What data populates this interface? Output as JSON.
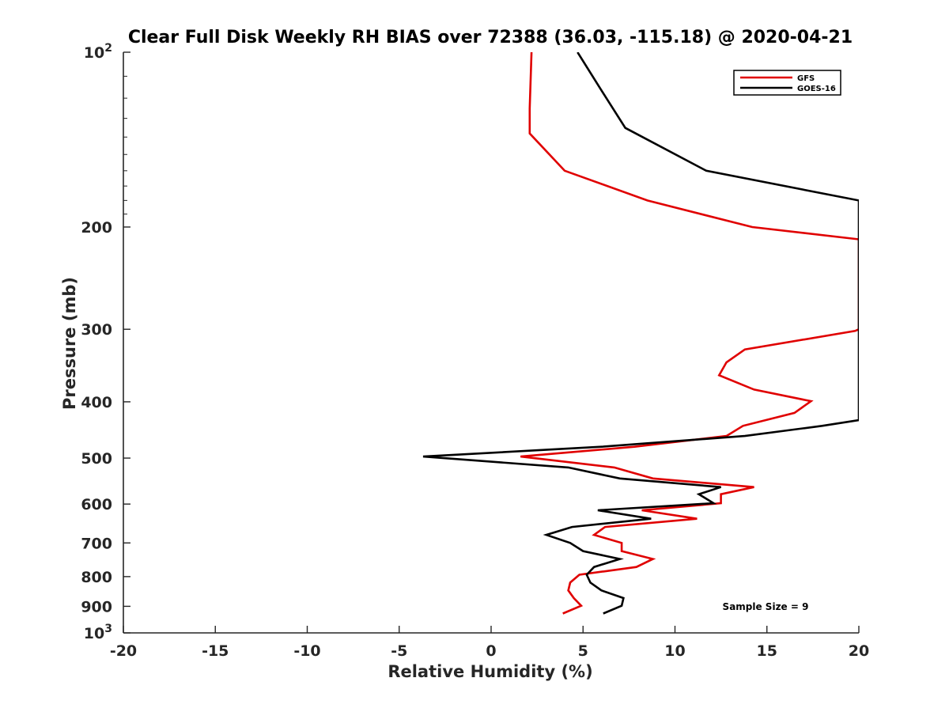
{
  "chart_data": {
    "type": "line",
    "title": "Clear Full Disk Weekly RH BIAS over 72388 (36.03, -115.18) @ 2020-04-21",
    "xlabel": "Relative Humidity (%)",
    "ylabel": "Pressure (mb)",
    "xlim": [
      -20,
      20
    ],
    "ylim": [
      100,
      1000
    ],
    "y_scale": "log",
    "y_reversed": true,
    "grid": false,
    "legend_position": "top-right",
    "x_ticks": [
      "-20",
      "-15",
      "-10",
      "-5",
      "0",
      "5",
      "10",
      "15",
      "20"
    ],
    "y_ticks": [
      {
        "value": 100,
        "label": "10",
        "sup": "2"
      },
      {
        "value": 200,
        "label": "200",
        "sup": ""
      },
      {
        "value": 300,
        "label": "300",
        "sup": ""
      },
      {
        "value": 400,
        "label": "400",
        "sup": ""
      },
      {
        "value": 500,
        "label": "500",
        "sup": ""
      },
      {
        "value": 600,
        "label": "600",
        "sup": ""
      },
      {
        "value": 700,
        "label": "700",
        "sup": ""
      },
      {
        "value": 800,
        "label": "800",
        "sup": ""
      },
      {
        "value": 900,
        "label": "900",
        "sup": ""
      },
      {
        "value": 1000,
        "label": "10",
        "sup": "3"
      }
    ],
    "annotation": "Sample Size = 9",
    "series": [
      {
        "name": "GFS",
        "color": "#e00000",
        "points": [
          [
            2.2,
            100
          ],
          [
            2.1,
            125
          ],
          [
            2.1,
            138
          ],
          [
            4.0,
            160
          ],
          [
            8.5,
            180
          ],
          [
            14.2,
            200
          ],
          [
            20.0,
            210
          ],
          [
            20.0,
            300
          ],
          [
            19.8,
            302
          ],
          [
            13.8,
            325
          ],
          [
            12.8,
            342
          ],
          [
            12.4,
            360
          ],
          [
            14.3,
            381
          ],
          [
            17.4,
            399
          ],
          [
            16.5,
            418
          ],
          [
            13.7,
            440
          ],
          [
            12.8,
            458
          ],
          [
            7.8,
            478
          ],
          [
            1.6,
            497
          ],
          [
            6.7,
            519
          ],
          [
            8.8,
            542
          ],
          [
            14.3,
            561
          ],
          [
            12.5,
            577
          ],
          [
            12.5,
            598
          ],
          [
            8.2,
            615
          ],
          [
            11.2,
            636
          ],
          [
            6.2,
            657
          ],
          [
            5.6,
            678
          ],
          [
            7.1,
            700
          ],
          [
            7.1,
            723
          ],
          [
            8.8,
            746
          ],
          [
            7.9,
            770
          ],
          [
            4.8,
            794
          ],
          [
            4.3,
            819
          ],
          [
            4.2,
            845
          ],
          [
            4.5,
            871
          ],
          [
            4.9,
            898
          ],
          [
            3.9,
            926
          ]
        ]
      },
      {
        "name": "GOES-16",
        "color": "#000000",
        "points": [
          [
            4.7,
            100
          ],
          [
            5.9,
            115
          ],
          [
            7.3,
            135
          ],
          [
            11.7,
            160
          ],
          [
            20.0,
            180
          ],
          [
            20.0,
            430
          ],
          [
            18.0,
            440
          ],
          [
            13.8,
            458
          ],
          [
            6.0,
            478
          ],
          [
            -3.7,
            497
          ],
          [
            4.2,
            519
          ],
          [
            7.0,
            542
          ],
          [
            12.5,
            561
          ],
          [
            11.3,
            577
          ],
          [
            12.1,
            598
          ],
          [
            5.8,
            615
          ],
          [
            8.7,
            636
          ],
          [
            4.4,
            657
          ],
          [
            3.0,
            678
          ],
          [
            4.3,
            700
          ],
          [
            5.0,
            723
          ],
          [
            7.0,
            746
          ],
          [
            5.6,
            770
          ],
          [
            5.2,
            794
          ],
          [
            5.4,
            819
          ],
          [
            6.0,
            845
          ],
          [
            7.2,
            871
          ],
          [
            7.1,
            898
          ],
          [
            6.1,
            926
          ]
        ]
      }
    ]
  }
}
